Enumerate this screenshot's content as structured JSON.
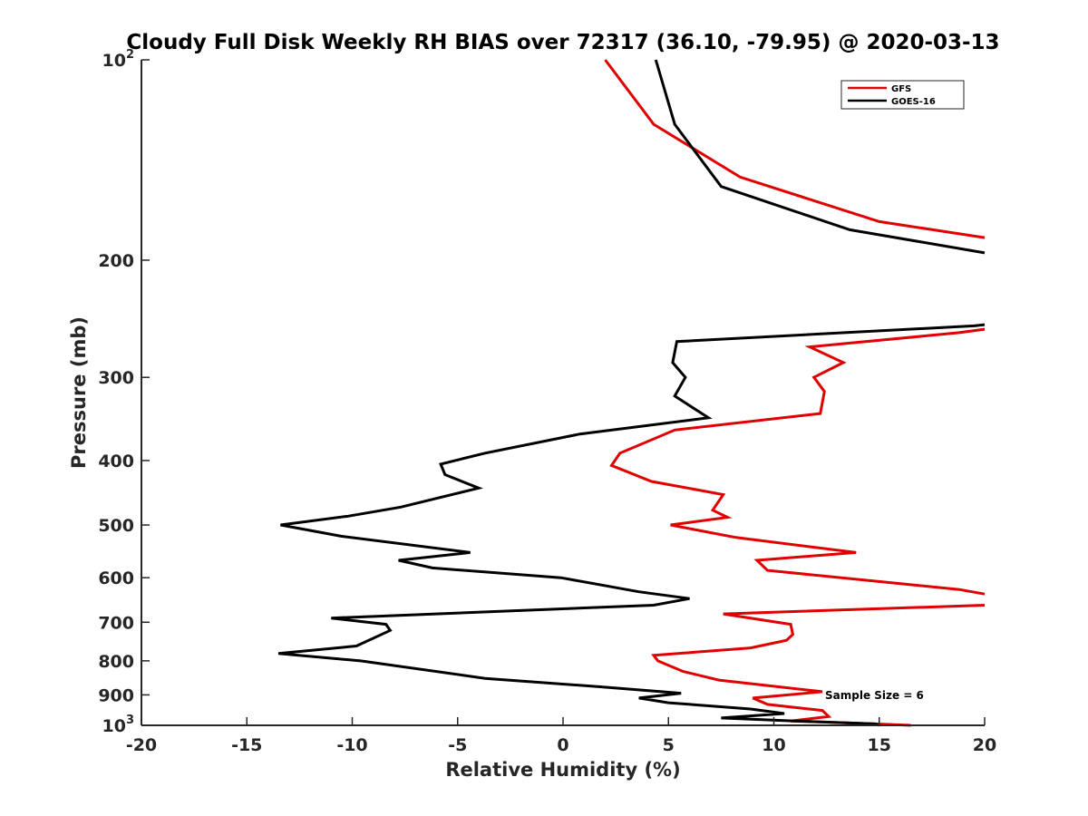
{
  "chart_data": {
    "type": "line",
    "title": "Cloudy Full Disk Weekly RH BIAS over 72317 (36.10, -79.95) @ 2020-03-13",
    "xlabel": "Relative Humidity (%)",
    "ylabel": "Pressure (mb)",
    "xlim": [
      -20,
      20
    ],
    "ylim": [
      100,
      1000
    ],
    "y_scale": "log",
    "y_reversed": true,
    "grid": false,
    "legend_position": "top-right",
    "x_ticks": [
      -20,
      -15,
      -10,
      -5,
      0,
      5,
      10,
      15,
      20
    ],
    "x_tick_labels": [
      "-20",
      "-15",
      "-10",
      "-5",
      "0",
      "5",
      "10",
      "15",
      "20"
    ],
    "y_ticks": [
      100,
      200,
      300,
      400,
      500,
      600,
      700,
      800,
      900,
      1000
    ],
    "y_tick_labels": [
      {
        "base": "10",
        "sup": "2"
      },
      {
        "base": "200",
        "sup": ""
      },
      {
        "base": "300",
        "sup": ""
      },
      {
        "base": "400",
        "sup": ""
      },
      {
        "base": "500",
        "sup": ""
      },
      {
        "base": "600",
        "sup": ""
      },
      {
        "base": "700",
        "sup": ""
      },
      {
        "base": "800",
        "sup": ""
      },
      {
        "base": "900",
        "sup": ""
      },
      {
        "base": "10",
        "sup": "3"
      }
    ],
    "series": [
      {
        "name": "GFS",
        "color": "#e00000",
        "points": [
          [
            2.0,
            100
          ],
          [
            4.3,
            125
          ],
          [
            8.4,
            150
          ],
          [
            15.0,
            175
          ],
          [
            20.0,
            185
          ],
          [
            null,
            null
          ],
          [
            20.0,
            254
          ],
          [
            19.6,
            255
          ],
          [
            18.8,
            257
          ],
          [
            11.7,
            270
          ],
          [
            13.3,
            285
          ],
          [
            11.9,
            300
          ],
          [
            12.4,
            315
          ],
          [
            12.2,
            340
          ],
          [
            5.3,
            360
          ],
          [
            2.7,
            390
          ],
          [
            2.3,
            407
          ],
          [
            4.2,
            430
          ],
          [
            7.6,
            450
          ],
          [
            7.1,
            475
          ],
          [
            7.8,
            487
          ],
          [
            5.1,
            500
          ],
          [
            8.2,
            522
          ],
          [
            13.9,
            550
          ],
          [
            9.2,
            565
          ],
          [
            9.7,
            585
          ],
          [
            18.8,
            625
          ],
          [
            20.0,
            635
          ],
          [
            null,
            null
          ],
          [
            20.0,
            660
          ],
          [
            7.6,
            680
          ],
          [
            10.8,
            705
          ],
          [
            10.9,
            730
          ],
          [
            10.6,
            745
          ],
          [
            8.9,
            765
          ],
          [
            4.3,
            785
          ],
          [
            4.5,
            800
          ],
          [
            5.7,
            830
          ],
          [
            7.4,
            855
          ],
          [
            12.3,
            890
          ],
          [
            9.0,
            910
          ],
          [
            9.7,
            930
          ],
          [
            12.3,
            950
          ],
          [
            12.6,
            970
          ],
          [
            10.8,
            985
          ],
          [
            14.8,
            995
          ],
          [
            16.5,
            1000
          ]
        ]
      },
      {
        "name": "GOES-16",
        "color": "#000000",
        "points": [
          [
            4.4,
            100
          ],
          [
            5.3,
            125
          ],
          [
            7.5,
            155
          ],
          [
            13.6,
            180
          ],
          [
            20.0,
            195
          ],
          [
            null,
            null
          ],
          [
            20.0,
            250
          ],
          [
            19.5,
            251
          ],
          [
            5.4,
            265
          ],
          [
            5.2,
            285
          ],
          [
            5.8,
            300
          ],
          [
            5.3,
            320
          ],
          [
            6.9,
            345
          ],
          [
            0.8,
            365
          ],
          [
            -3.7,
            390
          ],
          [
            -5.8,
            405
          ],
          [
            -5.6,
            420
          ],
          [
            -4.0,
            440
          ],
          [
            -7.7,
            470
          ],
          [
            -10.2,
            485
          ],
          [
            -13.4,
            500
          ],
          [
            -10.5,
            520
          ],
          [
            -4.4,
            550
          ],
          [
            -7.8,
            565
          ],
          [
            -6.2,
            580
          ],
          [
            -0.1,
            600
          ],
          [
            3.6,
            630
          ],
          [
            6.0,
            645
          ],
          [
            4.3,
            660
          ],
          [
            -11.0,
            690
          ],
          [
            -8.4,
            705
          ],
          [
            -8.2,
            720
          ],
          [
            -9.8,
            760
          ],
          [
            -13.5,
            780
          ],
          [
            -9.6,
            800
          ],
          [
            -3.7,
            850
          ],
          [
            1.7,
            875
          ],
          [
            5.6,
            895
          ],
          [
            3.6,
            910
          ],
          [
            5.0,
            925
          ],
          [
            8.9,
            945
          ],
          [
            10.5,
            960
          ],
          [
            7.5,
            975
          ],
          [
            11.0,
            985
          ],
          [
            14.8,
            995
          ],
          [
            15.0,
            1000
          ]
        ]
      }
    ],
    "annotation": "Sample Size = 6"
  }
}
